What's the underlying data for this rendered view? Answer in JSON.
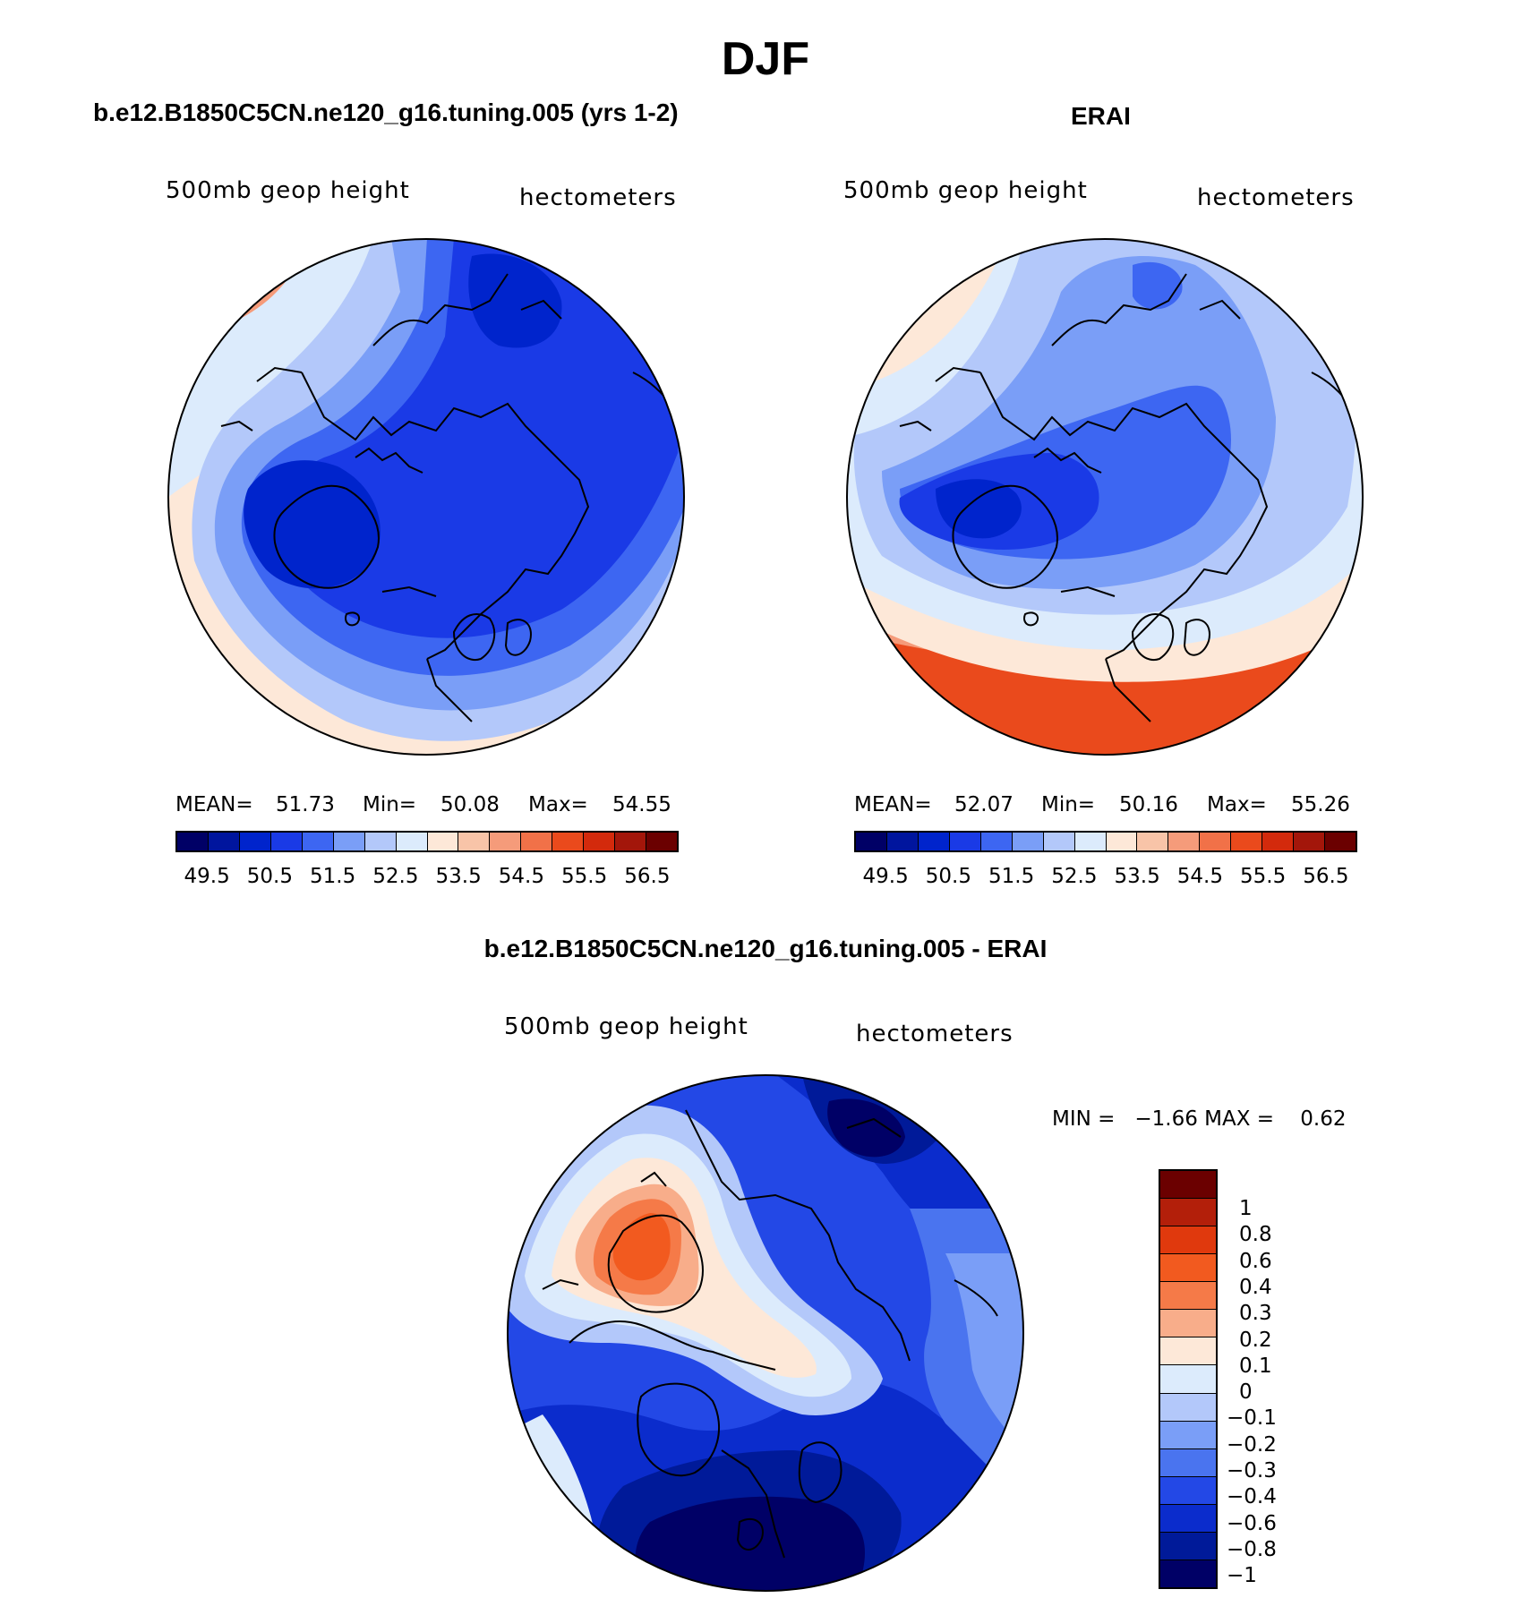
{
  "title": "DJF",
  "panels": {
    "model": {
      "title": "b.e12.B1850C5CN.ne120_g16.tuning.005 (yrs 1-2)",
      "left_label": "500mb geop height",
      "right_label": "hectometers",
      "mean_label": "MEAN=",
      "mean": "51.73",
      "min_label": "Min=",
      "min": "50.08",
      "max_label": "Max=",
      "max": "54.55"
    },
    "obs": {
      "title": "ERAI",
      "left_label": "500mb geop height",
      "right_label": "hectometers",
      "mean_label": "MEAN=",
      "mean": "52.07",
      "min_label": "Min=",
      "min": "50.16",
      "max_label": "Max=",
      "max": "55.26"
    },
    "diff": {
      "title": "b.e12.B1850C5CN.ne120_g16.tuning.005 - ERAI",
      "left_label": "500mb geop height",
      "right_label": "hectometers",
      "minmax_text": "MIN =   −1.66 MAX =    0.62"
    }
  },
  "colorbar_abs": {
    "colors": [
      "#000066",
      "#00159e",
      "#0024cc",
      "#1a3ae6",
      "#3d66f2",
      "#7a9ef7",
      "#b3c8fa",
      "#dcebfc",
      "#fde8d8",
      "#f8c4a8",
      "#f59b7a",
      "#f17148",
      "#ea4a1c",
      "#d32a0c",
      "#a3160a",
      "#6b0000"
    ],
    "labels": [
      "49.5",
      "50.5",
      "51.5",
      "52.5",
      "53.5",
      "54.5",
      "55.5",
      "56.5"
    ]
  },
  "colorbar_diff": {
    "colors": [
      "#6b0000",
      "#b31f0a",
      "#e0390d",
      "#f25a1f",
      "#f57a48",
      "#f8ad8a",
      "#fde8d8",
      "#dcebfc",
      "#b3c8fa",
      "#7a9ef7",
      "#4a74ef",
      "#2348e6",
      "#0b2ccc",
      "#001a99",
      "#000066"
    ],
    "labels": [
      "1",
      "0.8",
      "0.6",
      "0.4",
      "0.3",
      "0.2",
      "0.1",
      "0",
      "−0.1",
      "−0.2",
      "−0.3",
      "−0.4",
      "−0.6",
      "−0.8",
      "−1"
    ]
  }
}
